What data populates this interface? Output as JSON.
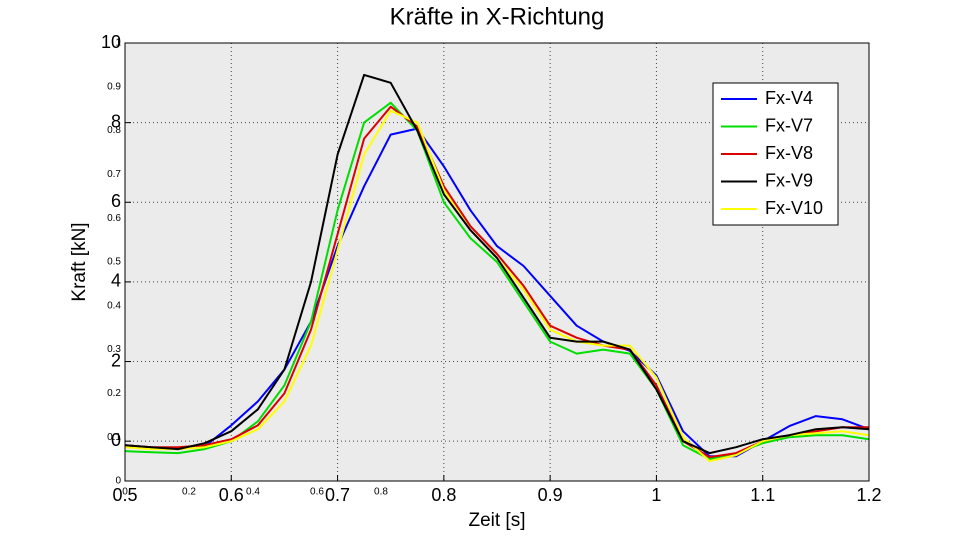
{
  "chart_data": [
    {
      "type": "line",
      "title": "Kräfte in X-Richtung",
      "xlabel": "Zeit [s]",
      "ylabel": "Kraft [kN]",
      "x": [
        0.5,
        0.525,
        0.55,
        0.575,
        0.6,
        0.625,
        0.65,
        0.675,
        0.7,
        0.725,
        0.75,
        0.775,
        0.8,
        0.825,
        0.85,
        0.875,
        0.9,
        0.925,
        0.95,
        0.975,
        1.0,
        1.025,
        1.05,
        1.075,
        1.1,
        1.125,
        1.15,
        1.175,
        1.2
      ],
      "series": [
        {
          "name": "Fx-V4",
          "color": "#0000ff",
          "values": [
            -0.13,
            -0.18,
            -0.2,
            -0.13,
            0.4,
            1.0,
            1.8,
            3.0,
            4.9,
            6.4,
            7.7,
            7.85,
            6.9,
            5.8,
            4.9,
            4.4,
            3.65,
            2.9,
            2.5,
            2.27,
            1.65,
            0.25,
            -0.38,
            -0.38,
            0.0,
            0.38,
            0.63,
            0.55,
            0.3
          ]
        },
        {
          "name": "Fx-V7",
          "color": "#00dd00",
          "values": [
            -0.25,
            -0.28,
            -0.3,
            -0.2,
            0.0,
            0.5,
            1.4,
            3.0,
            5.8,
            8.0,
            8.5,
            7.8,
            6.0,
            5.1,
            4.5,
            3.5,
            2.5,
            2.2,
            2.3,
            2.2,
            1.3,
            -0.1,
            -0.45,
            -0.3,
            -0.05,
            0.1,
            0.15,
            0.15,
            0.05
          ]
        },
        {
          "name": "Fx-V8",
          "color": "#dd0000",
          "values": [
            -0.1,
            -0.15,
            -0.15,
            -0.1,
            0.05,
            0.4,
            1.2,
            2.8,
            5.2,
            7.6,
            8.4,
            7.9,
            6.4,
            5.4,
            4.7,
            3.9,
            2.9,
            2.6,
            2.4,
            2.3,
            1.4,
            0.0,
            -0.4,
            -0.3,
            0.0,
            0.15,
            0.25,
            0.35,
            0.35
          ]
        },
        {
          "name": "Fx-V9",
          "color": "#000000",
          "values": [
            -0.1,
            -0.15,
            -0.2,
            -0.05,
            0.25,
            0.8,
            1.8,
            4.0,
            7.2,
            9.2,
            9.0,
            7.8,
            6.2,
            5.3,
            4.6,
            3.6,
            2.6,
            2.5,
            2.5,
            2.3,
            1.3,
            0.0,
            -0.3,
            -0.15,
            0.05,
            0.15,
            0.3,
            0.35,
            0.3
          ]
        },
        {
          "name": "Fx-V10",
          "color": "#ffff00",
          "values": [
            -0.15,
            -0.2,
            -0.2,
            -0.15,
            0.0,
            0.3,
            1.0,
            2.4,
            4.8,
            7.2,
            8.3,
            8.0,
            6.3,
            5.3,
            4.6,
            3.8,
            2.8,
            2.5,
            2.4,
            2.4,
            1.6,
            0.1,
            -0.5,
            -0.35,
            0.0,
            0.15,
            0.2,
            0.25,
            0.15
          ]
        }
      ],
      "xlim": [
        0.5,
        1.2
      ],
      "ylim": [
        -1,
        10
      ],
      "xticks": [
        0.5,
        0.6,
        0.7,
        0.8,
        0.9,
        1,
        1.1,
        1.2
      ],
      "yticks": [
        0,
        2,
        4,
        6,
        8,
        10
      ],
      "grid": true,
      "legend": "northeast"
    },
    {
      "type": "axes",
      "xlim": [
        0,
        1
      ],
      "ylim": [
        0,
        1
      ],
      "xticks": [
        0,
        0.2,
        0.4,
        0.6,
        0.8
      ],
      "yticks": [
        0,
        0.1,
        0.2,
        0.3,
        0.4,
        0.5,
        0.6,
        0.7,
        0.8,
        0.9,
        1
      ]
    }
  ]
}
